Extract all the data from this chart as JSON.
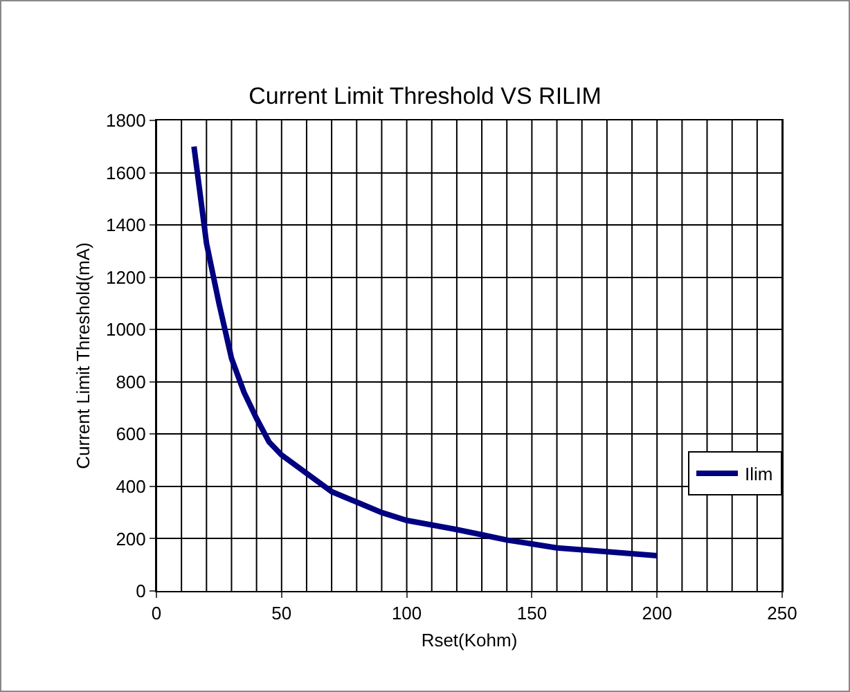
{
  "chart_data": {
    "type": "line",
    "title": "Current Limit Threshold VS RILIM",
    "xlabel": "Rset(Kohm)",
    "ylabel": "Current Limit Threshold(mA)",
    "x": [
      15,
      20,
      25,
      30,
      35,
      40,
      45,
      50,
      60,
      70,
      80,
      90,
      100,
      120,
      130,
      140,
      150,
      160,
      180,
      200
    ],
    "series": [
      {
        "name": "Ilim",
        "color": "#000080",
        "values": [
          1700,
          1330,
          1100,
          890,
          760,
          660,
          570,
          520,
          450,
          380,
          340,
          300,
          270,
          235,
          215,
          195,
          180,
          165,
          150,
          135
        ]
      }
    ],
    "xlim": [
      0,
      250
    ],
    "xticks": [
      0,
      50,
      100,
      150,
      200,
      250
    ],
    "ylim": [
      0,
      1800
    ],
    "yticks": [
      0,
      200,
      400,
      600,
      800,
      1000,
      1200,
      1400,
      1600,
      1800
    ],
    "grid": true,
    "legend": "right",
    "marker": "none",
    "line_style": "solid"
  }
}
